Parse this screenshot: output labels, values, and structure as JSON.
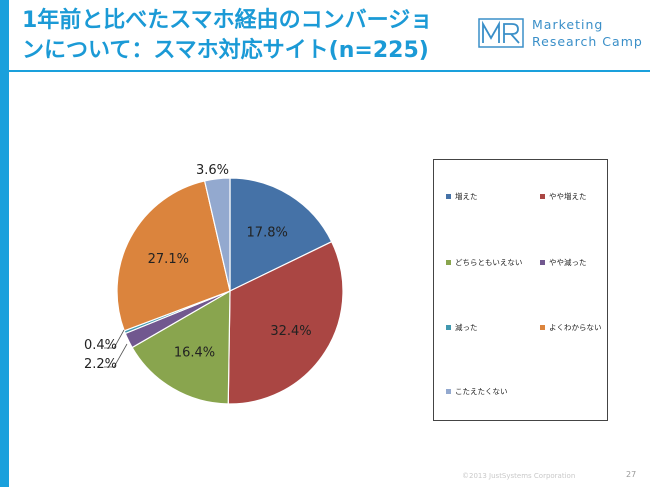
{
  "header": {
    "title_line1": "1年前と比べたスマホ経由のコンバージョ",
    "title_line2": "ンについて：スマホ対応サイト(n=225)"
  },
  "brand": {
    "line1": "Marketing",
    "line2": "Research Camp",
    "logo_icon": "mrc-logo-icon",
    "color": "#3a8fc8"
  },
  "chart_data": {
    "type": "pie",
    "title": "",
    "categories": [
      "増えた",
      "やや増えた",
      "どちらともいえない",
      "やや減った",
      "減った",
      "よくわからない",
      "こたえたくない"
    ],
    "values": [
      17.8,
      32.4,
      16.4,
      2.2,
      0.4,
      27.1,
      3.6
    ],
    "labels": [
      "17.8%",
      "32.4%",
      "16.4%",
      "2.2%",
      "0.4%",
      "27.1%",
      "3.6%"
    ],
    "colors": [
      "#4572a7",
      "#aa4643",
      "#89a54e",
      "#71588f",
      "#4198af",
      "#db843d",
      "#93a9cf"
    ],
    "start": "12 o'clock",
    "direction": "clockwise",
    "legend_position": "right"
  },
  "footer": {
    "copyright": "©2013 JustSystems Corporation",
    "page_number": "27"
  },
  "theme": {
    "accent": "#1aa0dc",
    "title_color": "#1b9ad6"
  }
}
